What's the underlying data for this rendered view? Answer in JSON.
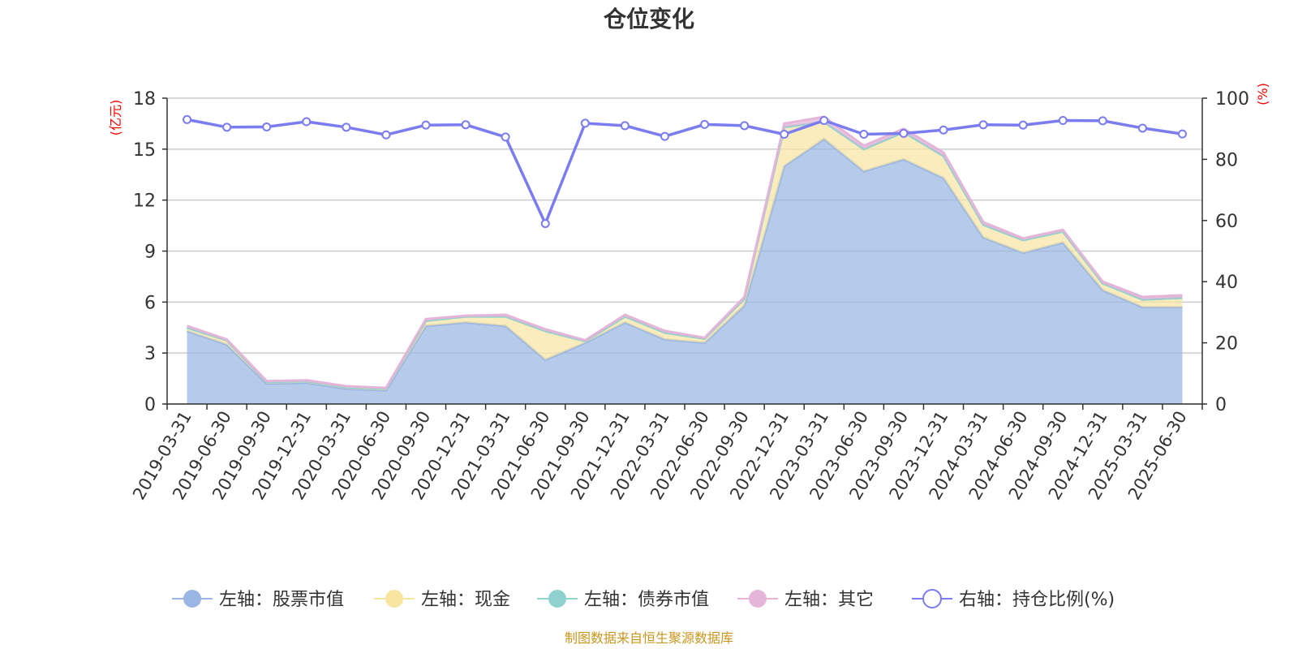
{
  "chart_data": {
    "type": "area",
    "title": "仓位变化",
    "left_axis_unit": "(亿元)",
    "right_axis_unit": "(%)",
    "left_ylim": [
      0,
      18
    ],
    "left_ticks": [
      0,
      3,
      6,
      9,
      12,
      15,
      18
    ],
    "right_ylim": [
      0,
      100
    ],
    "right_ticks": [
      0,
      20,
      40,
      60,
      80,
      100
    ],
    "grid": true,
    "legend_position": "bottom",
    "stacked": true,
    "x": [
      "2019-03-31",
      "2019-06-30",
      "2019-09-30",
      "2019-12-31",
      "2020-03-31",
      "2020-06-30",
      "2020-09-30",
      "2020-12-31",
      "2021-03-31",
      "2021-06-30",
      "2021-09-30",
      "2021-12-31",
      "2022-03-31",
      "2022-06-30",
      "2022-09-30",
      "2022-12-31",
      "2023-03-31",
      "2023-06-30",
      "2023-09-30",
      "2023-12-31",
      "2024-03-31",
      "2024-06-30",
      "2024-09-30",
      "2024-12-31",
      "2025-03-31",
      "2025-06-30"
    ],
    "series": [
      {
        "name": "左轴：股票市值",
        "axis": "left",
        "color": "#9ab6e2",
        "values": [
          4.3,
          3.5,
          1.2,
          1.25,
          0.9,
          0.8,
          4.6,
          4.8,
          4.6,
          2.6,
          3.6,
          4.8,
          3.8,
          3.6,
          5.8,
          14.0,
          15.6,
          13.7,
          14.4,
          13.3,
          9.8,
          8.9,
          9.5,
          6.7,
          5.7,
          5.7
        ]
      },
      {
        "name": "左轴：现金",
        "axis": "left",
        "color": "#f8e5a2",
        "values": [
          0.2,
          0.25,
          0.1,
          0.1,
          0.1,
          0.1,
          0.3,
          0.35,
          0.55,
          1.7,
          0.1,
          0.35,
          0.4,
          0.25,
          0.4,
          2.3,
          1.0,
          1.3,
          1.6,
          1.3,
          0.75,
          0.75,
          0.65,
          0.4,
          0.45,
          0.55
        ]
      },
      {
        "name": "左轴：债券市值",
        "axis": "left",
        "color": "#8fd1cf",
        "values": [
          0,
          0,
          0,
          0,
          0,
          0,
          0,
          0,
          0,
          0,
          0,
          0,
          0,
          0,
          0,
          0,
          0,
          0,
          0,
          0,
          0,
          0,
          0,
          0,
          0,
          0
        ]
      },
      {
        "name": "左轴：其它",
        "axis": "left",
        "color": "#e5b5d9",
        "values": [
          0.1,
          0.05,
          0.05,
          0.05,
          0.05,
          0.05,
          0.1,
          0.05,
          0.1,
          0.1,
          0.05,
          0.1,
          0.1,
          0.05,
          0.1,
          0.2,
          0.3,
          0.2,
          0.2,
          0.2,
          0.15,
          0.1,
          0.1,
          0.1,
          0.15,
          0.15
        ]
      },
      {
        "name": "右轴：持仓比例(%)",
        "axis": "right",
        "color": "#7a7cf0",
        "values": [
          93,
          90.5,
          90.6,
          92.3,
          90.5,
          88,
          91.2,
          91.3,
          87.3,
          59,
          91.8,
          91,
          87.5,
          91.4,
          91,
          88.2,
          92.7,
          88.2,
          88.5,
          89.6,
          91.3,
          91.2,
          92.7,
          92.6,
          90.2,
          88.3
        ]
      }
    ]
  },
  "source_text": "制图数据来自恒生聚源数据库"
}
